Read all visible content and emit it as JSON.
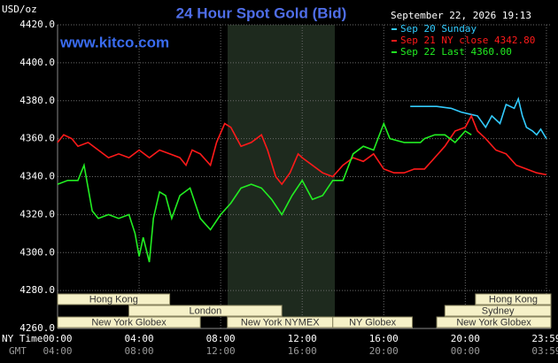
{
  "chart_data": {
    "type": "line",
    "title": "24 Hour Spot Gold (Bid)",
    "website": "www.kitco.com",
    "y_label": "USD/oz",
    "legend_header": "September 22, 2026 19:13",
    "x_row_label": "NY Time",
    "x2_row_label": "GMT",
    "xlim": [
      0,
      24.2
    ],
    "ylim": [
      4260,
      4420
    ],
    "grid": true,
    "yticks": [
      {
        "value": 4260,
        "label": "4260.0"
      },
      {
        "value": 4280,
        "label": "4280.0"
      },
      {
        "value": 4300,
        "label": "4300.0"
      },
      {
        "value": 4320,
        "label": "4320.0"
      },
      {
        "value": 4340,
        "label": "4340.0"
      },
      {
        "value": 4360,
        "label": "4360.0"
      },
      {
        "value": 4380,
        "label": "4380.0"
      },
      {
        "value": 4400,
        "label": "4400.0"
      },
      {
        "value": 4420,
        "label": "4420.0"
      }
    ],
    "xticks": [
      {
        "value": 0,
        "label": "00:00"
      },
      {
        "value": 4,
        "label": "04:00"
      },
      {
        "value": 8,
        "label": "08:00"
      },
      {
        "value": 12,
        "label": "12:00"
      },
      {
        "value": 16,
        "label": "16:00"
      },
      {
        "value": 20,
        "label": "20:00"
      },
      {
        "value": 23.98,
        "label": "23:59"
      }
    ],
    "x2_labels": [
      "04:00",
      "08:00",
      "12:00",
      "16:00",
      "20:00",
      "00:00",
      "03:59"
    ],
    "sessions": [
      {
        "label": "Hong Kong",
        "row": 0,
        "start": 0,
        "end": 5.5
      },
      {
        "label": "Hong Kong",
        "row": 0,
        "start": 20.5,
        "end": 24.2
      },
      {
        "label": "London",
        "row": 1,
        "start": 3.5,
        "end": 11
      },
      {
        "label": "Sydney",
        "row": 1,
        "start": 19,
        "end": 24.2
      },
      {
        "label": "New York Globex",
        "row": 2,
        "start": 0,
        "end": 7
      },
      {
        "label": "New York NYMEX",
        "row": 2,
        "start": 8.33,
        "end": 13.5
      },
      {
        "label": "NY Globex",
        "row": 2,
        "start": 13.5,
        "end": 17.4
      },
      {
        "label": "New York Globex",
        "row": 2,
        "start": 18.6,
        "end": 24.2
      }
    ],
    "series": [
      {
        "name": "Sep 20 Sunday",
        "color": "#33ccff",
        "x": [
          17.3,
          18,
          18.6,
          19.3,
          19.8,
          20.2,
          20.6,
          21,
          21.3,
          21.7,
          22,
          22.4,
          22.6,
          22.8,
          23,
          23.3,
          23.5,
          23.7,
          23.98
        ],
        "values": [
          4377,
          4377,
          4377,
          4376,
          4374,
          4373,
          4372,
          4366,
          4372,
          4368,
          4378,
          4376,
          4381,
          4372,
          4366,
          4364,
          4362,
          4365,
          4360
        ]
      },
      {
        "name": "Sep 21 NY close 4342.80",
        "color": "#ff1a1a",
        "x": [
          0,
          0.3,
          0.7,
          1,
          1.5,
          2,
          2.5,
          3,
          3.5,
          4,
          4.5,
          5,
          5.5,
          6,
          6.3,
          6.6,
          7,
          7.5,
          7.8,
          8.2,
          8.5,
          9,
          9.5,
          10,
          10.3,
          10.7,
          11,
          11.4,
          11.8,
          12,
          12.5,
          13,
          13.5,
          14,
          14.5,
          15,
          15.5,
          16,
          16.5,
          17,
          17.5,
          18,
          18.5,
          19,
          19.5,
          20,
          20.3,
          20.6,
          21,
          21.5,
          22,
          22.5,
          23,
          23.5,
          23.98
        ],
        "values": [
          4358,
          4362,
          4360,
          4356,
          4358,
          4354,
          4350,
          4352,
          4350,
          4354,
          4350,
          4354,
          4352,
          4350,
          4346,
          4354,
          4352,
          4346,
          4358,
          4368,
          4366,
          4356,
          4358,
          4362,
          4354,
          4340,
          4336,
          4342,
          4352,
          4350,
          4346,
          4342,
          4340,
          4346,
          4350,
          4348,
          4352,
          4344,
          4342,
          4342,
          4344,
          4344,
          4350,
          4356,
          4364,
          4366,
          4372,
          4364,
          4360,
          4354,
          4352,
          4346,
          4344,
          4342,
          4341
        ]
      },
      {
        "name": "Sep 22 Last 4360.00",
        "color": "#22ee22",
        "x": [
          0,
          0.5,
          1,
          1.3,
          1.5,
          1.7,
          2,
          2.5,
          3,
          3.5,
          3.8,
          4,
          4.2,
          4.5,
          4.7,
          5,
          5.3,
          5.6,
          6,
          6.5,
          7,
          7.5,
          8,
          8.5,
          9,
          9.5,
          10,
          10.5,
          11,
          11.5,
          12,
          12.5,
          13,
          13.5,
          14,
          14.5,
          15,
          15.5,
          16,
          16.3,
          17,
          17.8,
          18,
          18.5,
          19,
          19.5,
          20,
          20.3
        ],
        "values": [
          4336,
          4338,
          4338,
          4346,
          4334,
          4322,
          4318,
          4320,
          4318,
          4320,
          4310,
          4298,
          4308,
          4295,
          4318,
          4332,
          4330,
          4318,
          4330,
          4334,
          4318,
          4312,
          4320,
          4326,
          4334,
          4336,
          4334,
          4328,
          4320,
          4330,
          4338,
          4328,
          4330,
          4338,
          4338,
          4352,
          4356,
          4354,
          4368,
          4360,
          4358,
          4358,
          4360,
          4362,
          4362,
          4358,
          4364,
          4362
        ]
      }
    ]
  }
}
